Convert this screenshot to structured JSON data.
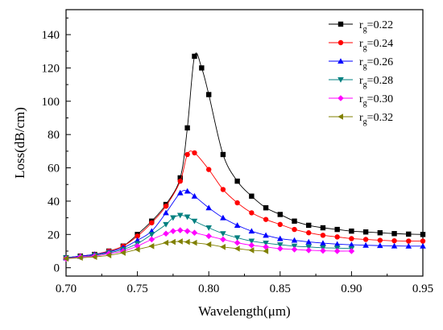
{
  "chart_data": {
    "type": "line",
    "title": "",
    "xlabel": "Wavelength(μm)",
    "ylabel": "Loss(dB/cm)",
    "xlim": [
      0.7,
      0.95
    ],
    "ylim": [
      -5,
      155
    ],
    "xticks": [
      "0.70",
      "0.75",
      "0.80",
      "0.85",
      "0.90",
      "0.95"
    ],
    "yticks": [
      "0",
      "20",
      "40",
      "60",
      "80",
      "100",
      "120",
      "140"
    ],
    "grid": false,
    "legend_position": "top-right",
    "series": [
      {
        "name": "rg=0.22",
        "legend_main": "r",
        "legend_sub": "g",
        "legend_value": "=0.22",
        "color": "#000000",
        "marker": "square",
        "x": [
          0.7,
          0.71,
          0.72,
          0.73,
          0.74,
          0.75,
          0.76,
          0.77,
          0.78,
          0.785,
          0.79,
          0.795,
          0.8,
          0.81,
          0.82,
          0.83,
          0.84,
          0.85,
          0.86,
          0.87,
          0.88,
          0.89,
          0.9,
          0.91,
          0.92,
          0.93,
          0.94,
          0.95
        ],
        "y": [
          6,
          7,
          8,
          10,
          13,
          20,
          28,
          38,
          54,
          84,
          127,
          120,
          104,
          68,
          52,
          43,
          36,
          32,
          28,
          25.5,
          24,
          23,
          22,
          21.5,
          21,
          20.5,
          20.2,
          20
        ]
      },
      {
        "name": "rg=0.24",
        "legend_main": "r",
        "legend_sub": "g",
        "legend_value": "=0.24",
        "color": "#ff0000",
        "marker": "circle",
        "x": [
          0.7,
          0.71,
          0.72,
          0.73,
          0.74,
          0.75,
          0.76,
          0.77,
          0.78,
          0.785,
          0.79,
          0.8,
          0.81,
          0.82,
          0.83,
          0.84,
          0.85,
          0.86,
          0.87,
          0.88,
          0.89,
          0.9,
          0.91,
          0.92,
          0.93,
          0.94,
          0.95
        ],
        "y": [
          6,
          7,
          8,
          10,
          13,
          19,
          27,
          37,
          52,
          68,
          69,
          59,
          47,
          39,
          33,
          29,
          26,
          23,
          21,
          19.5,
          18.5,
          17.5,
          17,
          16.5,
          16.2,
          16,
          16
        ]
      },
      {
        "name": "rg=0.26",
        "legend_main": "r",
        "legend_sub": "g",
        "legend_value": "=0.26",
        "color": "#0000ff",
        "marker": "triangle-up",
        "x": [
          0.7,
          0.71,
          0.72,
          0.73,
          0.74,
          0.75,
          0.76,
          0.77,
          0.78,
          0.785,
          0.79,
          0.8,
          0.81,
          0.82,
          0.83,
          0.84,
          0.85,
          0.86,
          0.87,
          0.88,
          0.89,
          0.9,
          0.91,
          0.92,
          0.93,
          0.94,
          0.95
        ],
        "y": [
          6,
          7,
          8,
          9.5,
          12,
          16.5,
          22,
          33,
          45,
          46,
          43,
          36,
          30,
          25.5,
          22,
          19.5,
          17.5,
          16.5,
          15.5,
          14.8,
          14.2,
          13.8,
          13.5,
          13.3,
          13.1,
          13,
          13
        ]
      },
      {
        "name": "rg=0.28",
        "legend_main": "r",
        "legend_sub": "g",
        "legend_value": "=0.28",
        "color": "#008080",
        "marker": "triangle-down",
        "x": [
          0.7,
          0.71,
          0.72,
          0.73,
          0.74,
          0.75,
          0.76,
          0.77,
          0.775,
          0.78,
          0.785,
          0.79,
          0.8,
          0.81,
          0.82,
          0.83,
          0.84,
          0.85,
          0.86,
          0.87,
          0.88,
          0.89,
          0.9
        ],
        "y": [
          6,
          6.5,
          7.5,
          9,
          11,
          14.5,
          20,
          26,
          30,
          31.5,
          30.5,
          28,
          24,
          20.5,
          18,
          16,
          14.8,
          13.8,
          13,
          12.5,
          12,
          11.8,
          11.5
        ]
      },
      {
        "name": "rg=0.30",
        "legend_main": "r",
        "legend_sub": "g",
        "legend_value": "=0.30",
        "color": "#ff00ff",
        "marker": "diamond",
        "x": [
          0.7,
          0.71,
          0.72,
          0.73,
          0.74,
          0.75,
          0.76,
          0.77,
          0.775,
          0.78,
          0.785,
          0.79,
          0.8,
          0.81,
          0.82,
          0.83,
          0.84,
          0.85,
          0.86,
          0.87,
          0.88,
          0.89,
          0.9
        ],
        "y": [
          5.5,
          6.5,
          7,
          8.5,
          10,
          13,
          17,
          20.5,
          22,
          22.5,
          22,
          21,
          19,
          17,
          15,
          13.5,
          12.5,
          11.5,
          11,
          10.5,
          10.2,
          10,
          10
        ]
      },
      {
        "name": "rg=0.32",
        "legend_main": "r",
        "legend_sub": "g",
        "legend_value": "=0.32",
        "color": "#808000",
        "marker": "triangle-left",
        "x": [
          0.7,
          0.71,
          0.72,
          0.73,
          0.74,
          0.75,
          0.76,
          0.77,
          0.775,
          0.78,
          0.785,
          0.79,
          0.8,
          0.81,
          0.82,
          0.83,
          0.84
        ],
        "y": [
          5.5,
          6,
          6.5,
          7.5,
          9,
          11,
          13,
          15,
          15.5,
          15.8,
          15.5,
          15,
          14,
          12.5,
          11.5,
          10.5,
          10
        ]
      }
    ]
  }
}
